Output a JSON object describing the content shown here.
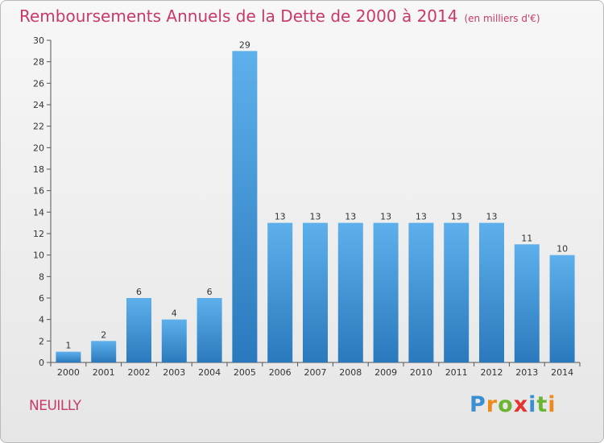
{
  "title": "Remboursements Annuels de la Dette de 2000 à 2014",
  "unit_note": "(en milliers d'€)",
  "commune": "NEUILLY",
  "logo": {
    "text": "Proxiti",
    "letters": [
      {
        "ch": "P",
        "color": "#3a8fd1"
      },
      {
        "ch": "r",
        "color": "#ef8a1a"
      },
      {
        "ch": "o",
        "color": "#6bb532"
      },
      {
        "ch": "x",
        "color": "#e3342f"
      },
      {
        "ch": "i",
        "color": "#3a8fd1"
      },
      {
        "ch": "t",
        "color": "#6bb532"
      },
      {
        "ch": "i",
        "color": "#ef8a1a"
      }
    ]
  },
  "colors": {
    "title": "#c8396b",
    "bar_light": "#5eb0ec",
    "bar_dark": "#2a79bd",
    "grid": "#dddddd",
    "axis": "#555555"
  },
  "chart_data": {
    "type": "bar",
    "title": "Remboursements Annuels de la Dette de 2000 à 2014",
    "xlabel": "",
    "ylabel": "",
    "categories": [
      "2000",
      "2001",
      "2002",
      "2003",
      "2004",
      "2005",
      "2006",
      "2007",
      "2008",
      "2009",
      "2010",
      "2011",
      "2012",
      "2013",
      "2014"
    ],
    "values": [
      1,
      2,
      6,
      4,
      6,
      29,
      13,
      13,
      13,
      13,
      13,
      13,
      13,
      11,
      10
    ],
    "value_labels": [
      "1",
      "2",
      "6",
      "4",
      "6",
      "29",
      "13",
      "13",
      "13",
      "13",
      "13",
      "13",
      "13",
      "11",
      "10"
    ],
    "yticks": [
      0,
      2,
      4,
      6,
      8,
      10,
      12,
      14,
      16,
      18,
      20,
      22,
      24,
      26,
      28,
      30
    ],
    "ylim": [
      0,
      30
    ],
    "grid": false,
    "legend": "none"
  }
}
